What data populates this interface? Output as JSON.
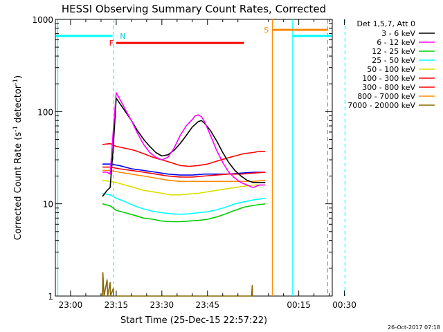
{
  "chart_data": {
    "type": "line",
    "title": "HESSI Observing Summary Count Rates, Corrected",
    "xlabel": "Start Time (25-Dec-15 22:57:22)",
    "ylabel": "Corrected Count Rate (s",
    "ylabel_sup1": "-1",
    "ylabel_mid": " detector",
    "ylabel_sup2": "-1",
    "ylabel_end": ")",
    "yscale": "log",
    "ylim": [
      1,
      1000
    ],
    "xlim_minutes": [
      -5,
      86
    ],
    "x_ticks": [
      {
        "m": 0,
        "label": "23:00"
      },
      {
        "m": 15,
        "label": "23:15"
      },
      {
        "m": 30,
        "label": "23:30"
      },
      {
        "m": 45,
        "label": "23:45"
      },
      {
        "m": 75,
        "label": "00:15"
      },
      {
        "m": 90,
        "label": "00:30"
      }
    ],
    "y_ticks": [
      {
        "v": 1,
        "label": "1"
      },
      {
        "v": 10,
        "label": "10"
      },
      {
        "v": 100,
        "label": "100"
      },
      {
        "v": 1000,
        "label": "1000"
      }
    ],
    "legend_header": "Det 1,5,7, Att 0",
    "legend_placement": "right",
    "series": [
      {
        "name": "3 - 6 keV",
        "color": "#000000",
        "points": [
          [
            10.5,
            12
          ],
          [
            12,
            14
          ],
          [
            13,
            15
          ],
          [
            14,
            40
          ],
          [
            15,
            140
          ],
          [
            16,
            125
          ],
          [
            18,
            100
          ],
          [
            20,
            80
          ],
          [
            22,
            62
          ],
          [
            24,
            50
          ],
          [
            26,
            42
          ],
          [
            28,
            36
          ],
          [
            30,
            33
          ],
          [
            32,
            34
          ],
          [
            34,
            38
          ],
          [
            36,
            45
          ],
          [
            38,
            55
          ],
          [
            40,
            68
          ],
          [
            42,
            78
          ],
          [
            43,
            80
          ],
          [
            44,
            75
          ],
          [
            46,
            62
          ],
          [
            48,
            48
          ],
          [
            50,
            36
          ],
          [
            52,
            28
          ],
          [
            54,
            23
          ],
          [
            56,
            20
          ],
          [
            58,
            18
          ],
          [
            60,
            17
          ],
          [
            62,
            17
          ],
          [
            64,
            17
          ]
        ]
      },
      {
        "name": "6 - 12 keV",
        "color": "#ff00ff",
        "points": [
          [
            10.5,
            22
          ],
          [
            12,
            22
          ],
          [
            13,
            21
          ],
          [
            14,
            60
          ],
          [
            15,
            160
          ],
          [
            16,
            140
          ],
          [
            18,
            105
          ],
          [
            20,
            80
          ],
          [
            22,
            58
          ],
          [
            24,
            44
          ],
          [
            26,
            36
          ],
          [
            28,
            32
          ],
          [
            30,
            30
          ],
          [
            32,
            32
          ],
          [
            34,
            40
          ],
          [
            36,
            55
          ],
          [
            38,
            70
          ],
          [
            40,
            82
          ],
          [
            41,
            90
          ],
          [
            42,
            92
          ],
          [
            43,
            88
          ],
          [
            44,
            78
          ],
          [
            46,
            55
          ],
          [
            48,
            38
          ],
          [
            50,
            28
          ],
          [
            52,
            22
          ],
          [
            54,
            19
          ],
          [
            56,
            17
          ],
          [
            58,
            16
          ],
          [
            60,
            15
          ],
          [
            62,
            16
          ],
          [
            64,
            16
          ]
        ]
      },
      {
        "name": "12 - 25 keV",
        "color": "#00cc00",
        "points": [
          [
            10.5,
            10
          ],
          [
            13,
            9.5
          ],
          [
            15,
            8.5
          ],
          [
            18,
            8
          ],
          [
            21,
            7.5
          ],
          [
            24,
            7
          ],
          [
            27,
            6.8
          ],
          [
            30,
            6.5
          ],
          [
            33,
            6.4
          ],
          [
            36,
            6.4
          ],
          [
            39,
            6.5
          ],
          [
            42,
            6.6
          ],
          [
            45,
            6.8
          ],
          [
            48,
            7.2
          ],
          [
            51,
            7.8
          ],
          [
            54,
            8.5
          ],
          [
            57,
            9.2
          ],
          [
            60,
            9.6
          ],
          [
            64,
            10
          ]
        ]
      },
      {
        "name": "25 - 50 keV",
        "color": "#00ffff",
        "points": [
          [
            10.5,
            13
          ],
          [
            13,
            12.5
          ],
          [
            15,
            11.5
          ],
          [
            18,
            10.5
          ],
          [
            21,
            9.5
          ],
          [
            24,
            8.8
          ],
          [
            27,
            8.3
          ],
          [
            30,
            8
          ],
          [
            33,
            7.8
          ],
          [
            36,
            7.7
          ],
          [
            39,
            7.8
          ],
          [
            42,
            8
          ],
          [
            45,
            8.2
          ],
          [
            48,
            8.6
          ],
          [
            51,
            9.2
          ],
          [
            54,
            10
          ],
          [
            57,
            10.5
          ],
          [
            60,
            11
          ],
          [
            64,
            11.5
          ]
        ]
      },
      {
        "name": "50 - 100 keV",
        "color": "#dddd00",
        "points": [
          [
            10.5,
            18
          ],
          [
            13,
            17.5
          ],
          [
            15,
            17
          ],
          [
            18,
            16
          ],
          [
            21,
            15
          ],
          [
            24,
            14
          ],
          [
            27,
            13.5
          ],
          [
            30,
            13
          ],
          [
            33,
            12.5
          ],
          [
            36,
            12.5
          ],
          [
            39,
            12.8
          ],
          [
            42,
            13
          ],
          [
            45,
            13.5
          ],
          [
            48,
            14
          ],
          [
            51,
            14.5
          ],
          [
            54,
            15
          ],
          [
            57,
            15.5
          ],
          [
            60,
            16
          ],
          [
            64,
            16
          ]
        ]
      },
      {
        "name": "100 - 300 keV",
        "color": "#ff0000",
        "points": [
          [
            10.5,
            44
          ],
          [
            13,
            45
          ],
          [
            15,
            42
          ],
          [
            18,
            40
          ],
          [
            21,
            38
          ],
          [
            24,
            35
          ],
          [
            27,
            32
          ],
          [
            30,
            30
          ],
          [
            33,
            28
          ],
          [
            36,
            26
          ],
          [
            39,
            25.5
          ],
          [
            42,
            26
          ],
          [
            45,
            27
          ],
          [
            48,
            29
          ],
          [
            51,
            31
          ],
          [
            54,
            33
          ],
          [
            57,
            35
          ],
          [
            60,
            36
          ],
          [
            62,
            37
          ],
          [
            64,
            37
          ]
        ]
      },
      {
        "name": "300 - 800 keV",
        "color": "#ff0000",
        "points": [
          [
            10.5,
            25
          ],
          [
            13,
            25
          ],
          [
            16,
            24
          ],
          [
            20,
            23
          ],
          [
            24,
            22
          ],
          [
            28,
            21
          ],
          [
            32,
            20
          ],
          [
            36,
            19.5
          ],
          [
            40,
            19.5
          ],
          [
            44,
            20
          ],
          [
            48,
            20.5
          ],
          [
            52,
            21
          ],
          [
            56,
            21
          ],
          [
            60,
            21.5
          ],
          [
            64,
            22
          ]
        ]
      },
      {
        "name": "800 - 7000 keV",
        "color": "#ff8800",
        "points": [
          [
            10.5,
            23
          ],
          [
            13,
            23
          ],
          [
            16,
            22
          ],
          [
            20,
            21
          ],
          [
            24,
            20
          ],
          [
            28,
            19
          ],
          [
            32,
            18
          ],
          [
            36,
            17.5
          ],
          [
            40,
            17.5
          ],
          [
            44,
            17.5
          ],
          [
            48,
            17.5
          ],
          [
            52,
            17.5
          ],
          [
            56,
            17.5
          ],
          [
            60,
            17.5
          ],
          [
            64,
            18
          ]
        ]
      },
      {
        "name": "7000 - 20000 keV",
        "color": "#886600",
        "points": [
          [
            10.5,
            1
          ],
          [
            10.6,
            1.8
          ],
          [
            11,
            1
          ],
          [
            12,
            1.5
          ],
          [
            12.2,
            1
          ],
          [
            13,
            1.4
          ],
          [
            13.1,
            1
          ],
          [
            14,
            1.2
          ],
          [
            14.1,
            1
          ],
          [
            59.5,
            1
          ],
          [
            59.7,
            1.3
          ],
          [
            59.8,
            1
          ]
        ]
      }
    ],
    "extra_series": [
      {
        "name": "",
        "color": "#0000ff",
        "points": [
          [
            10.5,
            27
          ],
          [
            13,
            27
          ],
          [
            16,
            26
          ],
          [
            20,
            24
          ],
          [
            24,
            23
          ],
          [
            28,
            22
          ],
          [
            32,
            21
          ],
          [
            36,
            20.5
          ],
          [
            40,
            20.5
          ],
          [
            44,
            21
          ],
          [
            48,
            21
          ],
          [
            52,
            21
          ],
          [
            56,
            21.5
          ],
          [
            60,
            22
          ],
          [
            64,
            22
          ]
        ]
      }
    ],
    "markers": {
      "cyan_vertical_solid_m": [
        -4.2,
        73
      ],
      "cyan_vertical_dashed_m": [
        14.2,
        90.2
      ],
      "orange_vertical_solid_m": [
        66.3
      ],
      "orange_vertical_dashed_m": [
        84.5
      ],
      "cyan_bars": [
        {
          "from": -5,
          "to": 13.8,
          "y": 660
        },
        {
          "from": 73,
          "to": 90.5,
          "y": 660
        }
      ],
      "red_bar": {
        "from": 15,
        "to": 57,
        "y": 555,
        "label": "F"
      },
      "orange_bar": {
        "from": 66.5,
        "to": 84.5,
        "y": 770,
        "label": "S"
      },
      "night_label": {
        "m": 15.3,
        "y": 660,
        "label": "N"
      }
    },
    "right_footer": "26-Oct-2017 07:18"
  }
}
